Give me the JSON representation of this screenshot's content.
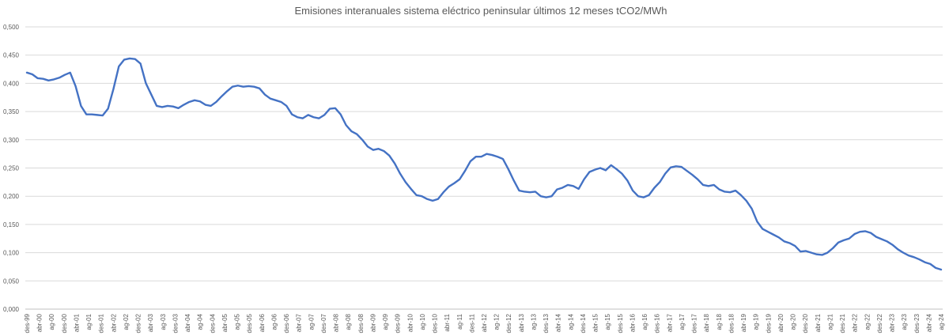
{
  "chart_data": {
    "type": "line",
    "title": "Emisiones interanuales sistema eléctrico peninsular últimos 12 meses tCO2/MWh",
    "ylim": [
      0,
      0.5
    ],
    "ytick_values": [
      0,
      0.05,
      0.1,
      0.15,
      0.2,
      0.25,
      0.3,
      0.35,
      0.4,
      0.45,
      0.5
    ],
    "ytick_labels": [
      "0,000",
      "0,050",
      "0,100",
      "0,150",
      "0,200",
      "0,250",
      "0,300",
      "0,350",
      "0,400",
      "0,450",
      "0,500"
    ],
    "grid": true,
    "legend": "none",
    "x_labels": [
      "des-99",
      "abr-00",
      "ag-00",
      "des-00",
      "abr-01",
      "ag-01",
      "des-01",
      "abr-02",
      "ag-02",
      "des-02",
      "abr-03",
      "ag-03",
      "des-03",
      "abr-04",
      "ag-04",
      "des-04",
      "abr-05",
      "ag-05",
      "des-05",
      "abr-06",
      "ag-06",
      "des-06",
      "abr-07",
      "ag-07",
      "des-07",
      "abr-08",
      "ag-08",
      "des-08",
      "abr-09",
      "ag-09",
      "des-09",
      "abr-10",
      "ag-10",
      "des-10",
      "abr-11",
      "ag-11",
      "des-11",
      "abr-12",
      "ag-12",
      "des-12",
      "abr-13",
      "ag-13",
      "des-13",
      "abr-14",
      "ag-14",
      "des-14",
      "abr-15",
      "ag-15",
      "des-15",
      "abr-16",
      "ag-16",
      "des-16",
      "abr-17",
      "ag-17",
      "des-17",
      "abr-18",
      "ag-18",
      "des-18",
      "abr-19",
      "ag-19",
      "des-19",
      "abr-20",
      "ag-20",
      "des-20",
      "abr-21",
      "ag-21",
      "des-21",
      "abr-22",
      "ag-22",
      "des-22",
      "abr-23",
      "ag-23",
      "des-23",
      "abr-24",
      "ag-24"
    ],
    "series": [
      {
        "color": "#4472c4",
        "values": [
          0.419,
          0.416,
          0.409,
          0.408,
          0.405,
          0.407,
          0.41,
          0.415,
          0.419,
          0.395,
          0.36,
          0.345,
          0.345,
          0.344,
          0.343,
          0.355,
          0.39,
          0.43,
          0.442,
          0.444,
          0.443,
          0.435,
          0.4,
          0.38,
          0.36,
          0.358,
          0.36,
          0.359,
          0.356,
          0.362,
          0.367,
          0.37,
          0.368,
          0.362,
          0.36,
          0.367,
          0.377,
          0.386,
          0.394,
          0.396,
          0.394,
          0.395,
          0.394,
          0.391,
          0.38,
          0.373,
          0.37,
          0.367,
          0.36,
          0.345,
          0.34,
          0.338,
          0.344,
          0.34,
          0.338,
          0.344,
          0.355,
          0.356,
          0.345,
          0.326,
          0.315,
          0.31,
          0.3,
          0.288,
          0.282,
          0.284,
          0.28,
          0.272,
          0.258,
          0.24,
          0.225,
          0.213,
          0.202,
          0.2,
          0.195,
          0.192,
          0.195,
          0.207,
          0.217,
          0.223,
          0.23,
          0.245,
          0.262,
          0.27,
          0.27,
          0.275,
          0.273,
          0.27,
          0.266,
          0.248,
          0.228,
          0.21,
          0.208,
          0.207,
          0.208,
          0.2,
          0.198,
          0.2,
          0.212,
          0.215,
          0.22,
          0.218,
          0.213,
          0.23,
          0.243,
          0.247,
          0.25,
          0.246,
          0.255,
          0.248,
          0.24,
          0.228,
          0.21,
          0.2,
          0.198,
          0.202,
          0.215,
          0.225,
          0.24,
          0.251,
          0.253,
          0.252,
          0.245,
          0.238,
          0.23,
          0.22,
          0.218,
          0.22,
          0.212,
          0.208,
          0.207,
          0.21,
          0.202,
          0.192,
          0.178,
          0.155,
          0.142,
          0.137,
          0.132,
          0.127,
          0.12,
          0.117,
          0.112,
          0.102,
          0.103,
          0.1,
          0.097,
          0.096,
          0.1,
          0.108,
          0.118,
          0.122,
          0.125,
          0.133,
          0.137,
          0.138,
          0.135,
          0.128,
          0.124,
          0.12,
          0.114,
          0.106,
          0.1,
          0.095,
          0.092,
          0.088,
          0.083,
          0.08,
          0.073,
          0.07
        ]
      }
    ]
  }
}
